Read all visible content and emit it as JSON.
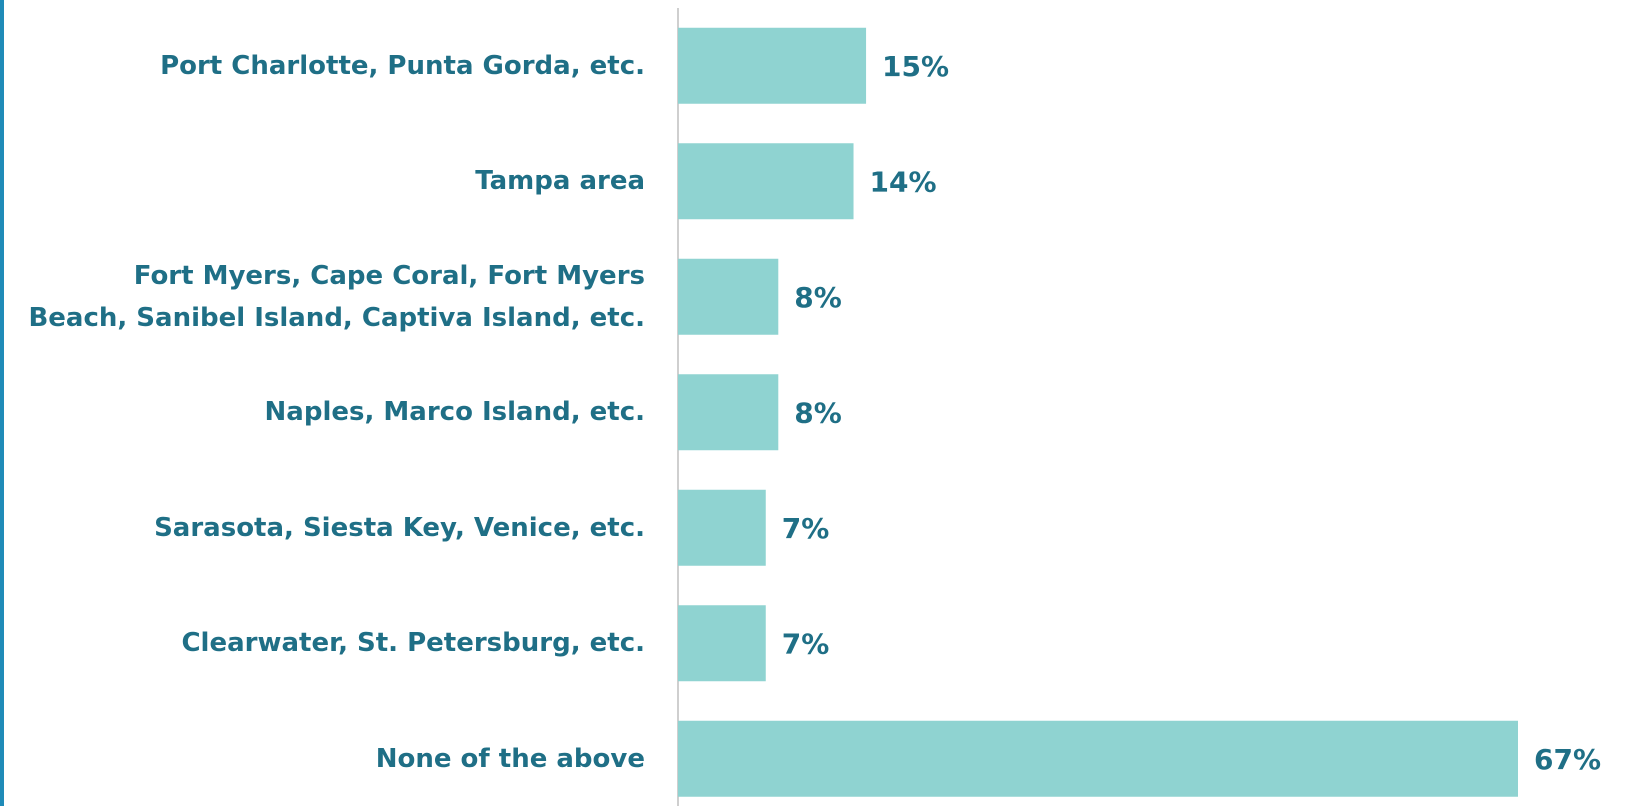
{
  "chart_data": {
    "type": "bar",
    "orientation": "horizontal",
    "categories": [
      "Port Charlotte, Punta Gorda, etc.",
      "Tampa area",
      "Fort Myers, Cape Coral, Fort Myers\nBeach, Sanibel Island, Captiva Island, etc.",
      "Naples, Marco Island, etc.",
      "Sarasota, Siesta Key, Venice, etc.",
      "Clearwater, St. Petersburg, etc.",
      "None of the above"
    ],
    "values": [
      15,
      14,
      8,
      8,
      7,
      7,
      67
    ],
    "value_labels": [
      "15%",
      "14%",
      "8%",
      "8%",
      "7%",
      "7%",
      "67%"
    ],
    "color": "#8fd3d1"
  }
}
